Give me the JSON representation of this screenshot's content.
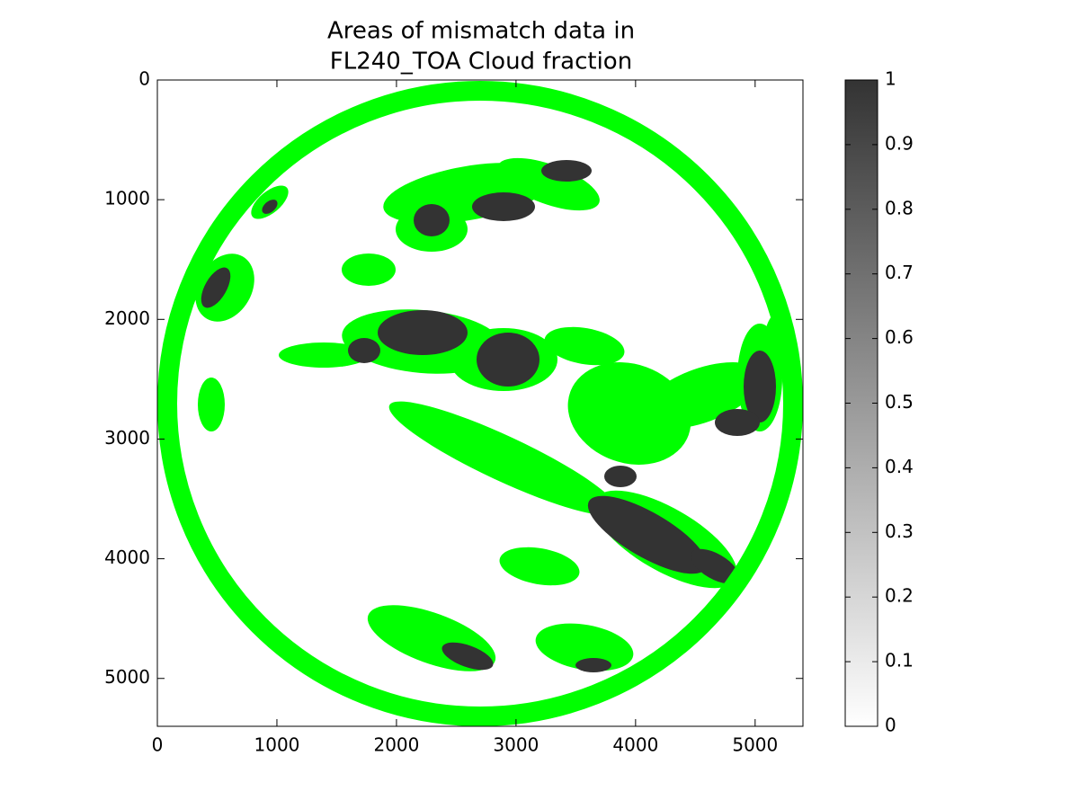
{
  "chart_data": {
    "type": "image",
    "title": [
      "Areas of mismatch data in",
      "FL240_TOA Cloud fraction"
    ],
    "xlim": [
      0,
      5400
    ],
    "ylim": [
      5400,
      0
    ],
    "xticks": [
      0,
      1000,
      2000,
      3000,
      4000,
      5000
    ],
    "yticks": [
      0,
      1000,
      2000,
      3000,
      4000,
      5000
    ],
    "colorbar": {
      "lim": [
        0,
        1
      ],
      "ticks": [
        0,
        0.1,
        0.2,
        0.3,
        0.4,
        0.5,
        0.6,
        0.7,
        0.8,
        0.9,
        1
      ],
      "colors": [
        "#ffffff",
        "#333333"
      ]
    },
    "mask_color": "#00ff00"
  }
}
